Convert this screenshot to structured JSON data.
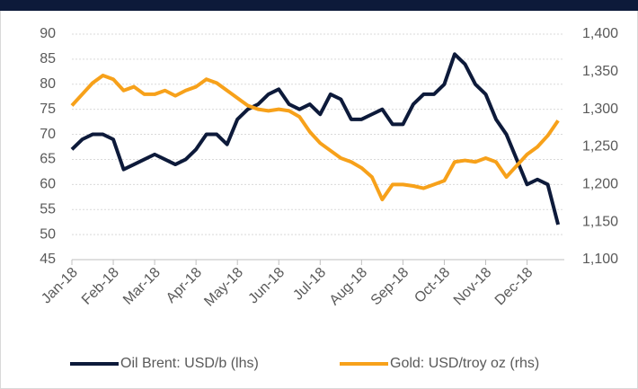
{
  "chart_data": {
    "type": "line",
    "x": [
      0,
      0.25,
      0.5,
      0.75,
      1,
      1.25,
      1.5,
      1.75,
      2,
      2.25,
      2.5,
      2.75,
      3,
      3.25,
      3.5,
      3.75,
      4,
      4.25,
      4.5,
      4.75,
      5,
      5.25,
      5.5,
      5.75,
      6,
      6.25,
      6.5,
      6.75,
      7,
      7.25,
      7.5,
      7.75,
      8,
      8.25,
      8.5,
      8.75,
      9,
      9.25,
      9.5,
      9.75,
      10,
      10.25,
      10.5,
      10.75,
      11,
      11.25,
      11.5,
      11.75
    ],
    "xlim": [
      0,
      11.9
    ],
    "xticks": [
      {
        "value": 0,
        "label": "Jan-18"
      },
      {
        "value": 1,
        "label": "Feb-18"
      },
      {
        "value": 2,
        "label": "Mar-18"
      },
      {
        "value": 3,
        "label": "Apr-18"
      },
      {
        "value": 4,
        "label": "May-18"
      },
      {
        "value": 5,
        "label": "Jun-18"
      },
      {
        "value": 6,
        "label": "Jul-18"
      },
      {
        "value": 7,
        "label": "Aug-18"
      },
      {
        "value": 8,
        "label": "Sep-18"
      },
      {
        "value": 9,
        "label": "Oct-18"
      },
      {
        "value": 10,
        "label": "Nov-18"
      },
      {
        "value": 11,
        "label": "Dec-18"
      }
    ],
    "ylim": [
      45,
      90
    ],
    "yticks": [
      45,
      50,
      55,
      60,
      65,
      70,
      75,
      80,
      85,
      90
    ],
    "y2lim": [
      1100,
      1400
    ],
    "y2ticks": [
      {
        "value": 1100,
        "label": "1,100"
      },
      {
        "value": 1150,
        "label": "1,150"
      },
      {
        "value": 1200,
        "label": "1,200"
      },
      {
        "value": 1250,
        "label": "1,250"
      },
      {
        "value": 1300,
        "label": "1,300"
      },
      {
        "value": 1350,
        "label": "1,350"
      },
      {
        "value": 1400,
        "label": "1,400"
      }
    ],
    "grid": true,
    "series": [
      {
        "name": "Oil Brent: USD/b (lhs)",
        "color": "#0d1a3a",
        "values": [
          67,
          69,
          70,
          70,
          69,
          63,
          64,
          65,
          66,
          65,
          64,
          65,
          67,
          70,
          70,
          68,
          73,
          75,
          76,
          78,
          79,
          76,
          75,
          76,
          74,
          78,
          77,
          73,
          73,
          74,
          75,
          72,
          72,
          76,
          78,
          78,
          80,
          86,
          84,
          80,
          78,
          73,
          70,
          65,
          60,
          61,
          60,
          52
        ]
      },
      {
        "name": "Gold: USD/troy oz (rhs)",
        "color": "#f7a11a",
        "axis": "y2",
        "values": [
          1305,
          1320,
          1335,
          1345,
          1340,
          1325,
          1330,
          1320,
          1320,
          1325,
          1318,
          1325,
          1330,
          1340,
          1335,
          1325,
          1315,
          1305,
          1300,
          1298,
          1300,
          1298,
          1290,
          1270,
          1255,
          1245,
          1235,
          1230,
          1222,
          1210,
          1180,
          1200,
          1200,
          1198,
          1195,
          1200,
          1205,
          1230,
          1232,
          1230,
          1235,
          1230,
          1210,
          1225,
          1240,
          1250,
          1265,
          1285
        ]
      }
    ]
  }
}
